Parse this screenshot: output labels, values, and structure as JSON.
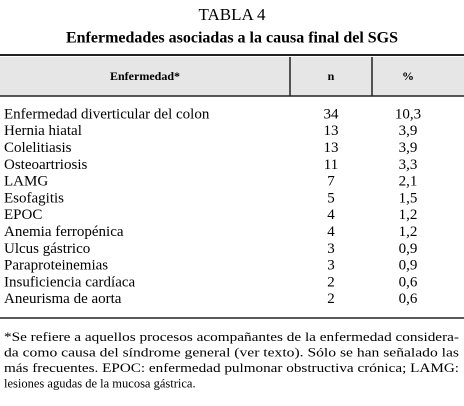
{
  "header": {
    "title": "TABLA 4",
    "subtitle": "Enfermedades asociadas a la causa final del SGS"
  },
  "table": {
    "columns": [
      "Enfermedad*",
      "n",
      "%"
    ],
    "rows": [
      [
        "Enfermedad diverticular del colon",
        "34",
        "10,3"
      ],
      [
        "Hernia hiatal",
        "13",
        "3,9"
      ],
      [
        "Colelitiasis",
        "13",
        "3,9"
      ],
      [
        "Osteoartriosis",
        "11",
        "3,3"
      ],
      [
        "LAMG",
        "7",
        "2,1"
      ],
      [
        "Esofagitis",
        "5",
        "1,5"
      ],
      [
        "EPOC",
        "4",
        "1,2"
      ],
      [
        "Anemia ferropénica",
        "4",
        "1,2"
      ],
      [
        "Ulcus gástrico",
        "3",
        "0,9"
      ],
      [
        "Paraproteinemias",
        "3",
        "0,9"
      ],
      [
        "Insuficiencia cardíaca",
        "2",
        "0,6"
      ],
      [
        "Aneurisma de aorta",
        "2",
        "0,6"
      ]
    ]
  },
  "footnote": [
    "*Se refiere a aquellos procesos acompañantes de la enfermedad considera-",
    "da como causa del síndrome general (ver texto). Sólo se han señalado las",
    "más frecuentes. EPOC: enfermedad pulmonar obstructiva crónica; LAMG:",
    "lesiones agudas de la mucosa gástrica."
  ]
}
